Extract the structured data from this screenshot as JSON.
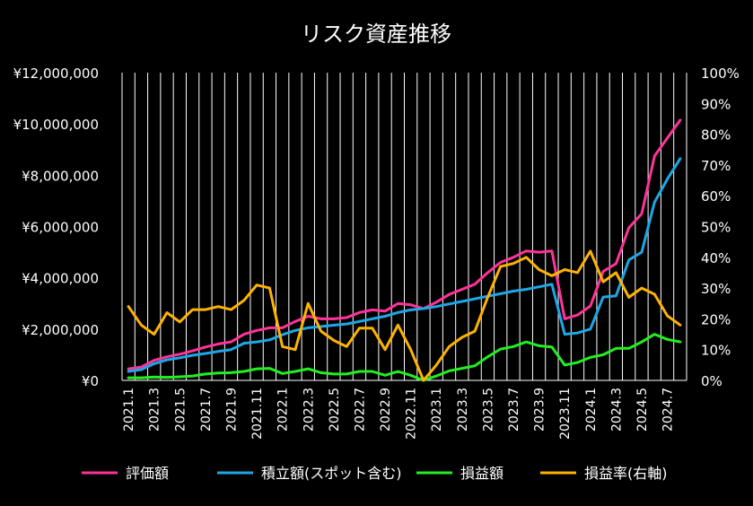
{
  "chart_data": {
    "type": "line",
    "title": "リスク資産推移",
    "x": [
      "2021.1",
      "2021.2",
      "2021.3",
      "2021.4",
      "2021.5",
      "2021.6",
      "2021.7",
      "2021.8",
      "2021.9",
      "2021.10",
      "2021.11",
      "2021.12",
      "2022.1",
      "2022.2",
      "2022.3",
      "2022.4",
      "2022.5",
      "2022.6",
      "2022.7",
      "2022.8",
      "2022.9",
      "2022.10",
      "2022.11",
      "2022.12",
      "2023.1",
      "2023.2",
      "2023.3",
      "2023.4",
      "2023.5",
      "2023.6",
      "2023.7",
      "2023.8",
      "2023.9",
      "2023.10",
      "2023.11",
      "2023.12",
      "2024.1",
      "2024.2",
      "2024.3",
      "2024.4",
      "2024.5",
      "2024.6",
      "2024.7",
      "2024.8"
    ],
    "x_tick_labels": [
      "2021.1",
      "2021.3",
      "2021.5",
      "2021.7",
      "2021.9",
      "2021.11",
      "2022.1",
      "2022.3",
      "2022.5",
      "2022.7",
      "2022.9",
      "2022.11",
      "2023.1",
      "2023.3",
      "2023.5",
      "2023.7",
      "2023.9",
      "2023.11",
      "2024.1",
      "2024.3",
      "2024.5",
      "2024.7"
    ],
    "y_left_ticks": [
      "¥0",
      "¥2,000,000",
      "¥4,000,000",
      "¥6,000,000",
      "¥8,000,000",
      "¥10,000,000",
      "¥12,000,000"
    ],
    "y_left_lim": [
      0,
      12000000
    ],
    "y_right_ticks": [
      "0%",
      "10%",
      "20%",
      "30%",
      "40%",
      "50%",
      "60%",
      "70%",
      "80%",
      "90%",
      "100%"
    ],
    "y_right_lim": [
      0,
      100
    ],
    "grid": "vertical",
    "legend_position": "bottom",
    "series": [
      {
        "name": "評価額",
        "axis": "left",
        "color": "#ff3399",
        "values": [
          450000,
          520000,
          780000,
          920000,
          1020000,
          1150000,
          1300000,
          1420000,
          1500000,
          1800000,
          1950000,
          2050000,
          2050000,
          2300000,
          2500000,
          2400000,
          2400000,
          2450000,
          2650000,
          2750000,
          2700000,
          3000000,
          2950000,
          2800000,
          3050000,
          3350000,
          3550000,
          3750000,
          4200000,
          4600000,
          4800000,
          5050000,
          5000000,
          5050000,
          2400000,
          2550000,
          2900000,
          4250000,
          4550000,
          5950000,
          6500000,
          8750000,
          9450000,
          10150000
        ]
      },
      {
        "name": "積立額(スポット含む)",
        "axis": "left",
        "color": "#1ea7e6",
        "values": [
          350000,
          420000,
          650000,
          800000,
          880000,
          980000,
          1050000,
          1130000,
          1200000,
          1450000,
          1500000,
          1580000,
          1780000,
          1950000,
          2050000,
          2100000,
          2150000,
          2200000,
          2300000,
          2400000,
          2500000,
          2650000,
          2750000,
          2800000,
          2880000,
          2980000,
          3080000,
          3180000,
          3280000,
          3380000,
          3480000,
          3550000,
          3650000,
          3750000,
          1800000,
          1850000,
          2000000,
          3250000,
          3300000,
          4700000,
          5000000,
          6950000,
          7850000,
          8650000
        ]
      },
      {
        "name": "損益額",
        "axis": "left",
        "color": "#22ee22",
        "values": [
          100000,
          100000,
          130000,
          120000,
          140000,
          170000,
          250000,
          290000,
          300000,
          350000,
          450000,
          470000,
          270000,
          350000,
          450000,
          300000,
          250000,
          250000,
          350000,
          350000,
          200000,
          350000,
          200000,
          0,
          170000,
          370000,
          470000,
          570000,
          920000,
          1220000,
          1320000,
          1500000,
          1350000,
          1300000,
          600000,
          700000,
          900000,
          1000000,
          1250000,
          1250000,
          1500000,
          1800000,
          1600000,
          1500000
        ]
      },
      {
        "name": "損益率(右軸)",
        "axis": "right",
        "color": "#ffb300",
        "values": [
          24,
          18,
          15,
          22,
          19,
          23,
          23,
          24,
          23,
          26,
          31,
          30,
          11,
          10,
          25,
          16,
          13,
          11,
          17,
          17,
          10,
          18,
          10,
          0,
          5,
          11,
          14,
          16,
          27,
          37,
          38,
          40,
          36,
          34,
          36,
          35,
          42,
          32,
          35,
          27,
          30,
          28,
          21,
          18
        ]
      }
    ]
  }
}
